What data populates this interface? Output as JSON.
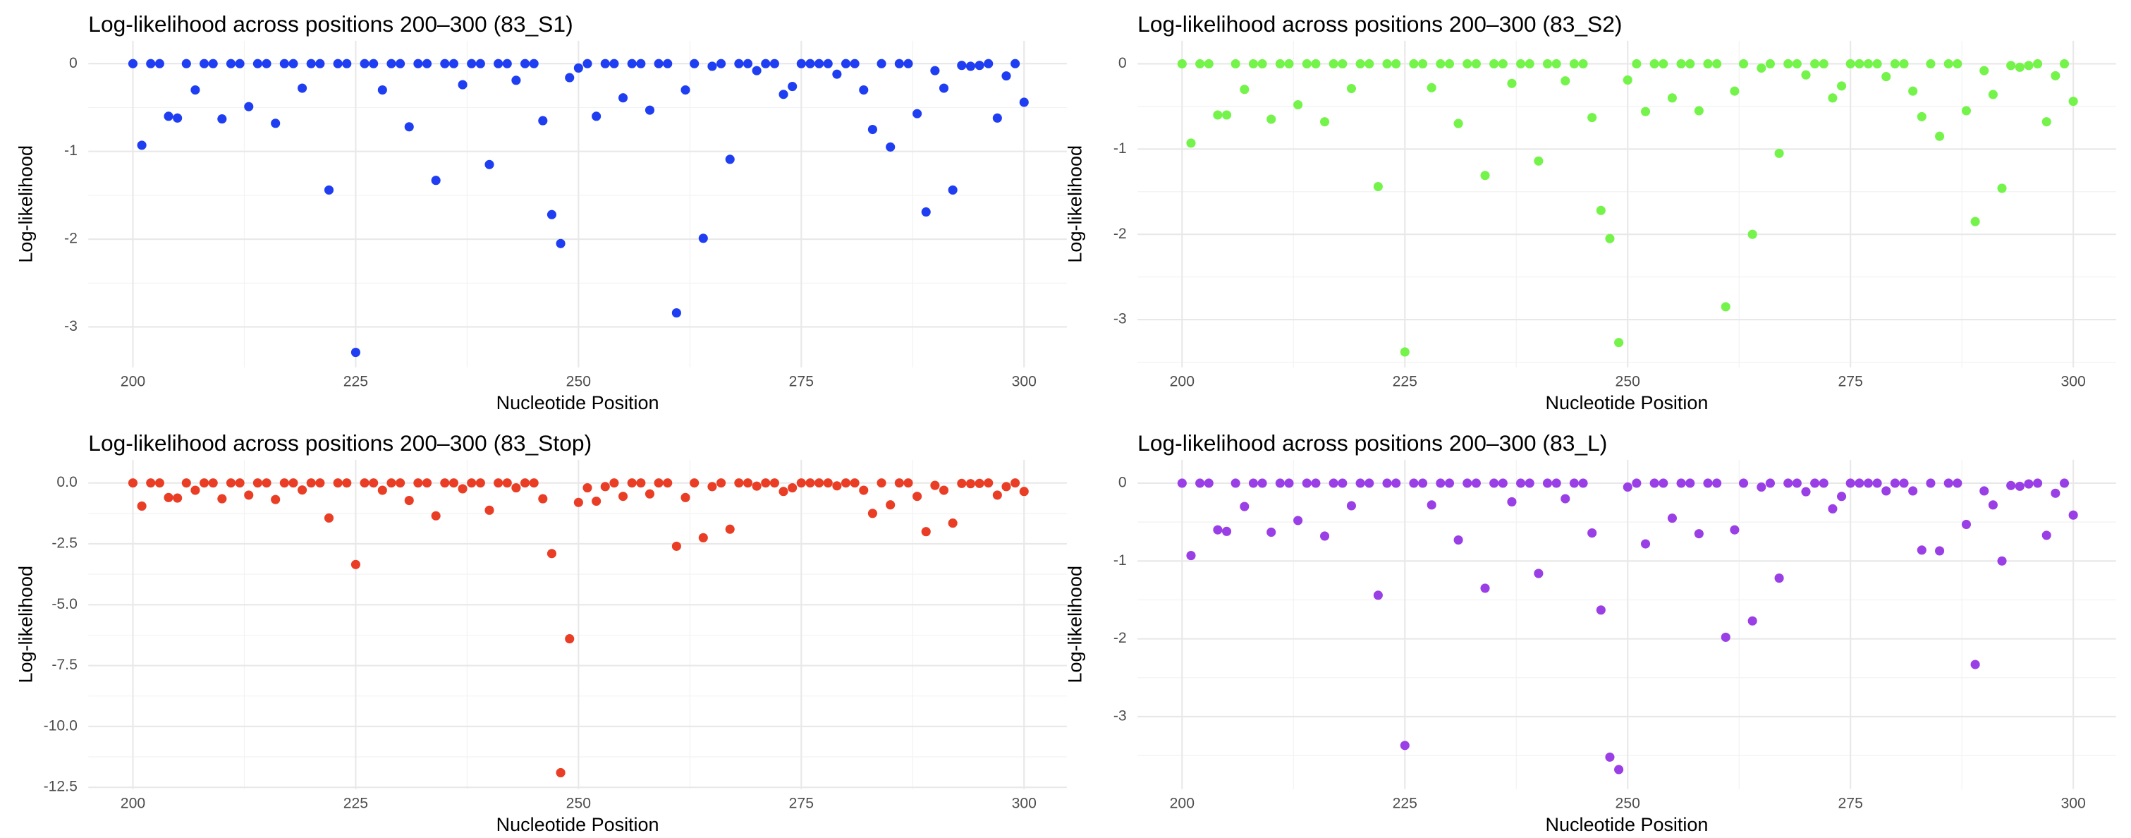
{
  "chart_data": [
    {
      "type": "scatter",
      "title": "Log-likelihood across positions 200–300 (83_S1)",
      "x_label": "Nucleotide Position",
      "y_label": "Log-likelihood",
      "color": "#1f3ef2",
      "grid": true,
      "xlim": [
        195,
        304.8
      ],
      "ylim": [
        -3.46,
        0.26
      ],
      "xticks": [
        200,
        225,
        250,
        275,
        300
      ],
      "yticks": [
        0,
        -1,
        -2,
        -3
      ],
      "minor_xticks": [
        212.5,
        237.5,
        262.5,
        287.5
      ],
      "minor_yticks": [
        -0.5,
        -1.5,
        -2.5
      ],
      "x": [
        200,
        201,
        202,
        203,
        204,
        205,
        206,
        207,
        208,
        209,
        210,
        211,
        212,
        213,
        214,
        215,
        216,
        217,
        218,
        219,
        220,
        221,
        222,
        223,
        224,
        225,
        226,
        227,
        228,
        229,
        230,
        231,
        232,
        233,
        234,
        235,
        236,
        237,
        238,
        239,
        240,
        241,
        242,
        243,
        244,
        245,
        246,
        247,
        248,
        249,
        250,
        251,
        252,
        253,
        254,
        255,
        256,
        257,
        258,
        259,
        260,
        261,
        262,
        263,
        264,
        265,
        266,
        267,
        268,
        269,
        270,
        271,
        272,
        273,
        274,
        275,
        276,
        277,
        278,
        279,
        280,
        281,
        282,
        283,
        284,
        285,
        286,
        287,
        288,
        289,
        290,
        291,
        292,
        293,
        294,
        295,
        296,
        297,
        298,
        299,
        300
      ],
      "values": [
        0,
        -0.93,
        0,
        0,
        -0.6,
        -0.62,
        0,
        -0.3,
        0,
        0,
        -0.63,
        0,
        0,
        -0.49,
        0,
        0,
        -0.68,
        0,
        0,
        -0.28,
        0,
        0,
        -1.44,
        0,
        0,
        -3.29,
        0,
        0,
        -0.3,
        0,
        0,
        -0.72,
        0,
        0,
        -1.33,
        0,
        0,
        -0.24,
        0,
        0,
        -1.15,
        0,
        0,
        -0.19,
        0,
        0,
        -0.65,
        -1.72,
        -2.05,
        -0.16,
        -0.05,
        0,
        -0.6,
        0,
        0,
        -0.39,
        0,
        0,
        -0.53,
        0,
        0,
        -2.84,
        -0.3,
        0,
        -1.99,
        -0.03,
        0,
        -1.09,
        0,
        0,
        -0.08,
        0,
        0,
        -0.35,
        -0.26,
        0,
        0,
        0,
        0,
        -0.12,
        0,
        0,
        -0.3,
        -0.75,
        0,
        -0.95,
        0,
        0,
        -0.57,
        -1.69,
        -0.08,
        -0.28,
        -1.44,
        -0.02,
        -0.03,
        -0.02,
        0,
        -0.62,
        -0.14,
        0,
        -0.44
      ]
    },
    {
      "type": "scatter",
      "title": "Log-likelihood across positions 200–300 (83_S2)",
      "x_label": "Nucleotide Position",
      "y_label": "Log-likelihood",
      "color": "#74f44a",
      "grid": true,
      "xlim": [
        195,
        304.8
      ],
      "ylim": [
        -3.56,
        0.27
      ],
      "xticks": [
        200,
        225,
        250,
        275,
        300
      ],
      "yticks": [
        0,
        -1,
        -2,
        -3
      ],
      "minor_xticks": [
        212.5,
        237.5,
        262.5,
        287.5
      ],
      "minor_yticks": [
        -0.5,
        -1.5,
        -2.5,
        -3.5
      ],
      "x": [
        200,
        201,
        202,
        203,
        204,
        205,
        206,
        207,
        208,
        209,
        210,
        211,
        212,
        213,
        214,
        215,
        216,
        217,
        218,
        219,
        220,
        221,
        222,
        223,
        224,
        225,
        226,
        227,
        228,
        229,
        230,
        231,
        232,
        233,
        234,
        235,
        236,
        237,
        238,
        239,
        240,
        241,
        242,
        243,
        244,
        245,
        246,
        247,
        248,
        249,
        250,
        251,
        252,
        253,
        254,
        255,
        256,
        257,
        258,
        259,
        260,
        261,
        262,
        263,
        264,
        265,
        266,
        267,
        268,
        269,
        270,
        271,
        272,
        273,
        274,
        275,
        276,
        277,
        278,
        279,
        280,
        281,
        282,
        283,
        284,
        285,
        286,
        287,
        288,
        289,
        290,
        291,
        292,
        293,
        294,
        295,
        296,
        297,
        298,
        299,
        300
      ],
      "values": [
        0,
        -0.93,
        0,
        0,
        -0.6,
        -0.6,
        0,
        -0.3,
        0,
        0,
        -0.65,
        0,
        0,
        -0.48,
        0,
        0,
        -0.68,
        0,
        0,
        -0.29,
        0,
        0,
        -1.44,
        0,
        0,
        -3.38,
        0,
        0,
        -0.28,
        0,
        0,
        -0.7,
        0,
        0,
        -1.31,
        0,
        0,
        -0.23,
        0,
        0,
        -1.14,
        0,
        0,
        -0.2,
        0,
        0,
        -0.63,
        -1.72,
        -2.05,
        -3.27,
        -0.19,
        0,
        -0.56,
        0,
        0,
        -0.4,
        0,
        0,
        -0.55,
        0,
        0,
        -2.85,
        -0.32,
        0,
        -2.0,
        -0.05,
        0,
        -1.05,
        0,
        0,
        -0.13,
        0,
        0,
        -0.4,
        -0.26,
        0,
        0,
        0,
        0,
        -0.15,
        0,
        0,
        -0.32,
        -0.62,
        0,
        -0.85,
        0,
        0,
        -0.55,
        -1.85,
        -0.08,
        -0.36,
        -1.46,
        -0.02,
        -0.04,
        -0.02,
        0,
        -0.68,
        -0.14,
        0,
        -0.44
      ]
    },
    {
      "type": "scatter",
      "title": "Log-likelihood across positions 200–300 (83_Stop)",
      "x_label": "Nucleotide Position",
      "y_label": "Log-likelihood",
      "color": "#e93e25",
      "grid": true,
      "xlim": [
        195,
        304.8
      ],
      "ylim": [
        -12.57,
        0.95
      ],
      "xticks": [
        200,
        225,
        250,
        275,
        300
      ],
      "yticks": [
        {
          "value": 0,
          "label": "0.0"
        },
        -2.5,
        {
          "value": -5,
          "label": "-5.0"
        },
        -7.5,
        {
          "value": -10,
          "label": "-10.0"
        },
        -12.5
      ],
      "minor_xticks": [
        212.5,
        237.5,
        262.5,
        287.5
      ],
      "minor_yticks": [
        -1.25,
        -3.75,
        -6.25,
        -8.75,
        -11.25
      ],
      "x": [
        200,
        201,
        202,
        203,
        204,
        205,
        206,
        207,
        208,
        209,
        210,
        211,
        212,
        213,
        214,
        215,
        216,
        217,
        218,
        219,
        220,
        221,
        222,
        223,
        224,
        225,
        226,
        227,
        228,
        229,
        230,
        231,
        232,
        233,
        234,
        235,
        236,
        237,
        238,
        239,
        240,
        241,
        242,
        243,
        244,
        245,
        246,
        247,
        248,
        249,
        250,
        251,
        252,
        253,
        254,
        255,
        256,
        257,
        258,
        259,
        260,
        261,
        262,
        263,
        264,
        265,
        266,
        267,
        268,
        269,
        270,
        271,
        272,
        273,
        274,
        275,
        276,
        277,
        278,
        279,
        280,
        281,
        282,
        283,
        284,
        285,
        286,
        287,
        288,
        289,
        290,
        291,
        292,
        293,
        294,
        295,
        296,
        297,
        298,
        299,
        300
      ],
      "values": [
        0,
        -0.95,
        0,
        0,
        -0.6,
        -0.62,
        0,
        -0.3,
        0,
        0,
        -0.65,
        0,
        0,
        -0.5,
        0,
        0,
        -0.68,
        0,
        0,
        -0.29,
        0,
        0,
        -1.44,
        0,
        0,
        -3.35,
        0,
        0,
        -0.3,
        0,
        0,
        -0.72,
        0,
        0,
        -1.35,
        0,
        0,
        -0.24,
        0,
        0,
        -1.12,
        0,
        0,
        -0.2,
        0,
        0,
        -0.65,
        -2.9,
        -11.9,
        -6.4,
        -0.8,
        -0.2,
        -0.75,
        -0.15,
        0,
        -0.55,
        0,
        0,
        -0.45,
        0,
        0,
        -2.6,
        -0.6,
        0,
        -2.25,
        -0.15,
        0,
        -1.9,
        0,
        0,
        -0.13,
        0,
        0,
        -0.35,
        -0.2,
        0,
        0,
        0,
        0,
        -0.12,
        0,
        0,
        -0.3,
        -1.25,
        0,
        -0.9,
        0,
        0,
        -0.55,
        -2.0,
        -0.1,
        -0.3,
        -1.65,
        -0.02,
        -0.03,
        -0.02,
        0,
        -0.5,
        -0.15,
        0,
        -0.35
      ]
    },
    {
      "type": "scatter",
      "title": "Log-likelihood across positions 200–300 (83_L)",
      "x_label": "Nucleotide Position",
      "y_label": "Log-likelihood",
      "color": "#9a3fe6",
      "grid": true,
      "xlim": [
        195,
        304.8
      ],
      "ylim": [
        -3.93,
        0.3
      ],
      "xticks": [
        200,
        225,
        250,
        275,
        300
      ],
      "yticks": [
        0,
        -1,
        -2,
        -3
      ],
      "minor_xticks": [
        212.5,
        237.5,
        262.5,
        287.5
      ],
      "minor_yticks": [
        -0.5,
        -1.5,
        -2.5,
        -3.5
      ],
      "x": [
        200,
        201,
        202,
        203,
        204,
        205,
        206,
        207,
        208,
        209,
        210,
        211,
        212,
        213,
        214,
        215,
        216,
        217,
        218,
        219,
        220,
        221,
        222,
        223,
        224,
        225,
        226,
        227,
        228,
        229,
        230,
        231,
        232,
        233,
        234,
        235,
        236,
        237,
        238,
        239,
        240,
        241,
        242,
        243,
        244,
        245,
        246,
        247,
        248,
        249,
        250,
        251,
        252,
        253,
        254,
        255,
        256,
        257,
        258,
        259,
        260,
        261,
        262,
        263,
        264,
        265,
        266,
        267,
        268,
        269,
        270,
        271,
        272,
        273,
        274,
        275,
        276,
        277,
        278,
        279,
        280,
        281,
        282,
        283,
        284,
        285,
        286,
        287,
        288,
        289,
        290,
        291,
        292,
        293,
        294,
        295,
        296,
        297,
        298,
        299,
        300
      ],
      "values": [
        0,
        -0.93,
        0,
        0,
        -0.6,
        -0.62,
        0,
        -0.3,
        0,
        0,
        -0.63,
        0,
        0,
        -0.48,
        0,
        0,
        -0.68,
        0,
        0,
        -0.29,
        0,
        0,
        -1.44,
        0,
        0,
        -3.37,
        0,
        0,
        -0.28,
        0,
        0,
        -0.73,
        0,
        0,
        -1.35,
        0,
        0,
        -0.24,
        0,
        0,
        -1.16,
        0,
        0,
        -0.2,
        0,
        0,
        -0.64,
        -1.63,
        -3.52,
        -3.68,
        -0.05,
        0,
        -0.78,
        0,
        0,
        -0.45,
        0,
        0,
        -0.65,
        0,
        0,
        -1.98,
        -0.6,
        0,
        -1.77,
        -0.05,
        0,
        -1.22,
        0,
        0,
        -0.11,
        0,
        0,
        -0.33,
        -0.17,
        0,
        0,
        0,
        0,
        -0.1,
        0,
        0,
        -0.1,
        -0.86,
        0,
        -0.87,
        0,
        0,
        -0.53,
        -2.33,
        -0.1,
        -0.28,
        -1.0,
        -0.03,
        -0.04,
        -0.01,
        0,
        -0.67,
        -0.13,
        0,
        -0.41
      ]
    }
  ]
}
